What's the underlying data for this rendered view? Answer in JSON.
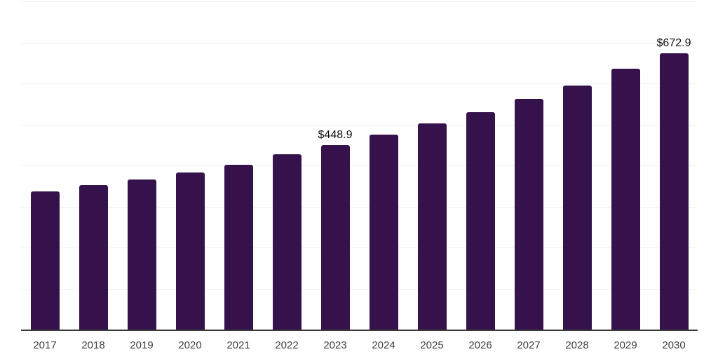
{
  "chart_data": {
    "type": "bar",
    "title": "",
    "xlabel": "",
    "ylabel": "",
    "categories": [
      "2017",
      "2018",
      "2019",
      "2020",
      "2021",
      "2022",
      "2023",
      "2024",
      "2025",
      "2026",
      "2027",
      "2028",
      "2029",
      "2030"
    ],
    "values": [
      336.5,
      352.3,
      365.5,
      383.0,
      402.5,
      427.2,
      448.9,
      474.4,
      502.6,
      530.5,
      562.9,
      595.7,
      635.4,
      672.9
    ],
    "data_labels": [
      "",
      "",
      "",
      "",
      "",
      "",
      "$448.9",
      "",
      "",
      "",
      "",
      "",
      "",
      "$672.9"
    ],
    "ylim": [
      0,
      800
    ],
    "grid_step": 100,
    "grid": true,
    "legend": false,
    "colors": {
      "bar": "#35124b",
      "gridline": "#efefef",
      "axis": "#3a3a3a",
      "tick_label": "#404040",
      "value_label": "#111111",
      "background": "#ffffff"
    }
  }
}
